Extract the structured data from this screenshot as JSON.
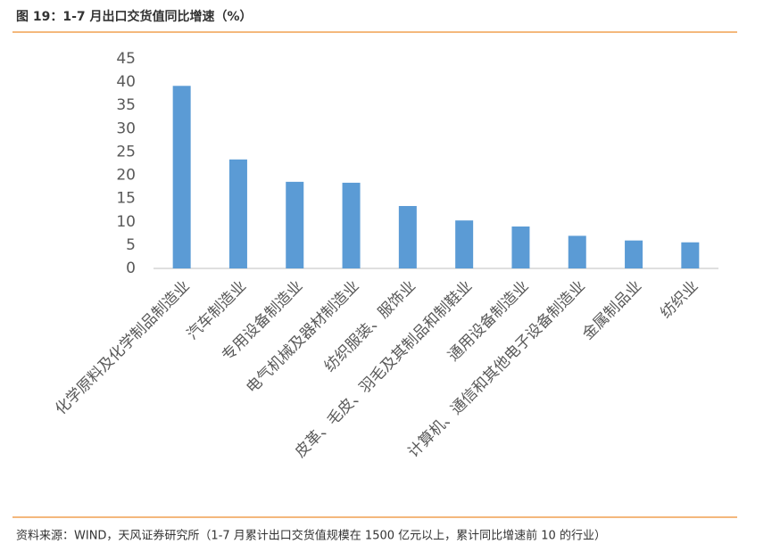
{
  "chart_data": {
    "type": "bar",
    "title": "图 19：1-7 月出口交货值同比增速（%）",
    "source": "资料来源：WIND，天风证券研究所（1-7 月累计出口交货值规模在 1500 亿元以上，累计同比增速前 10 的行业）",
    "categories": [
      "化学原料及化学制品制造业",
      "汽车制造业",
      "专用设备制造业",
      "电气机械及器材制造业",
      "纺织服装、服饰业",
      "皮革、毛皮、羽毛及其制品和制鞋业",
      "通用设备制造业",
      "计算机、通信和其他电子设备制造业",
      "金属制品业",
      "纺织业"
    ],
    "values": [
      39.2,
      23.4,
      18.6,
      18.4,
      13.4,
      10.3,
      9.0,
      7.0,
      6.0,
      5.6
    ],
    "color": "#5b9bd5",
    "ylim": [
      0,
      45
    ],
    "yticks": [
      0,
      5,
      10,
      15,
      20,
      25,
      30,
      35,
      40,
      45
    ],
    "grid": false
  }
}
